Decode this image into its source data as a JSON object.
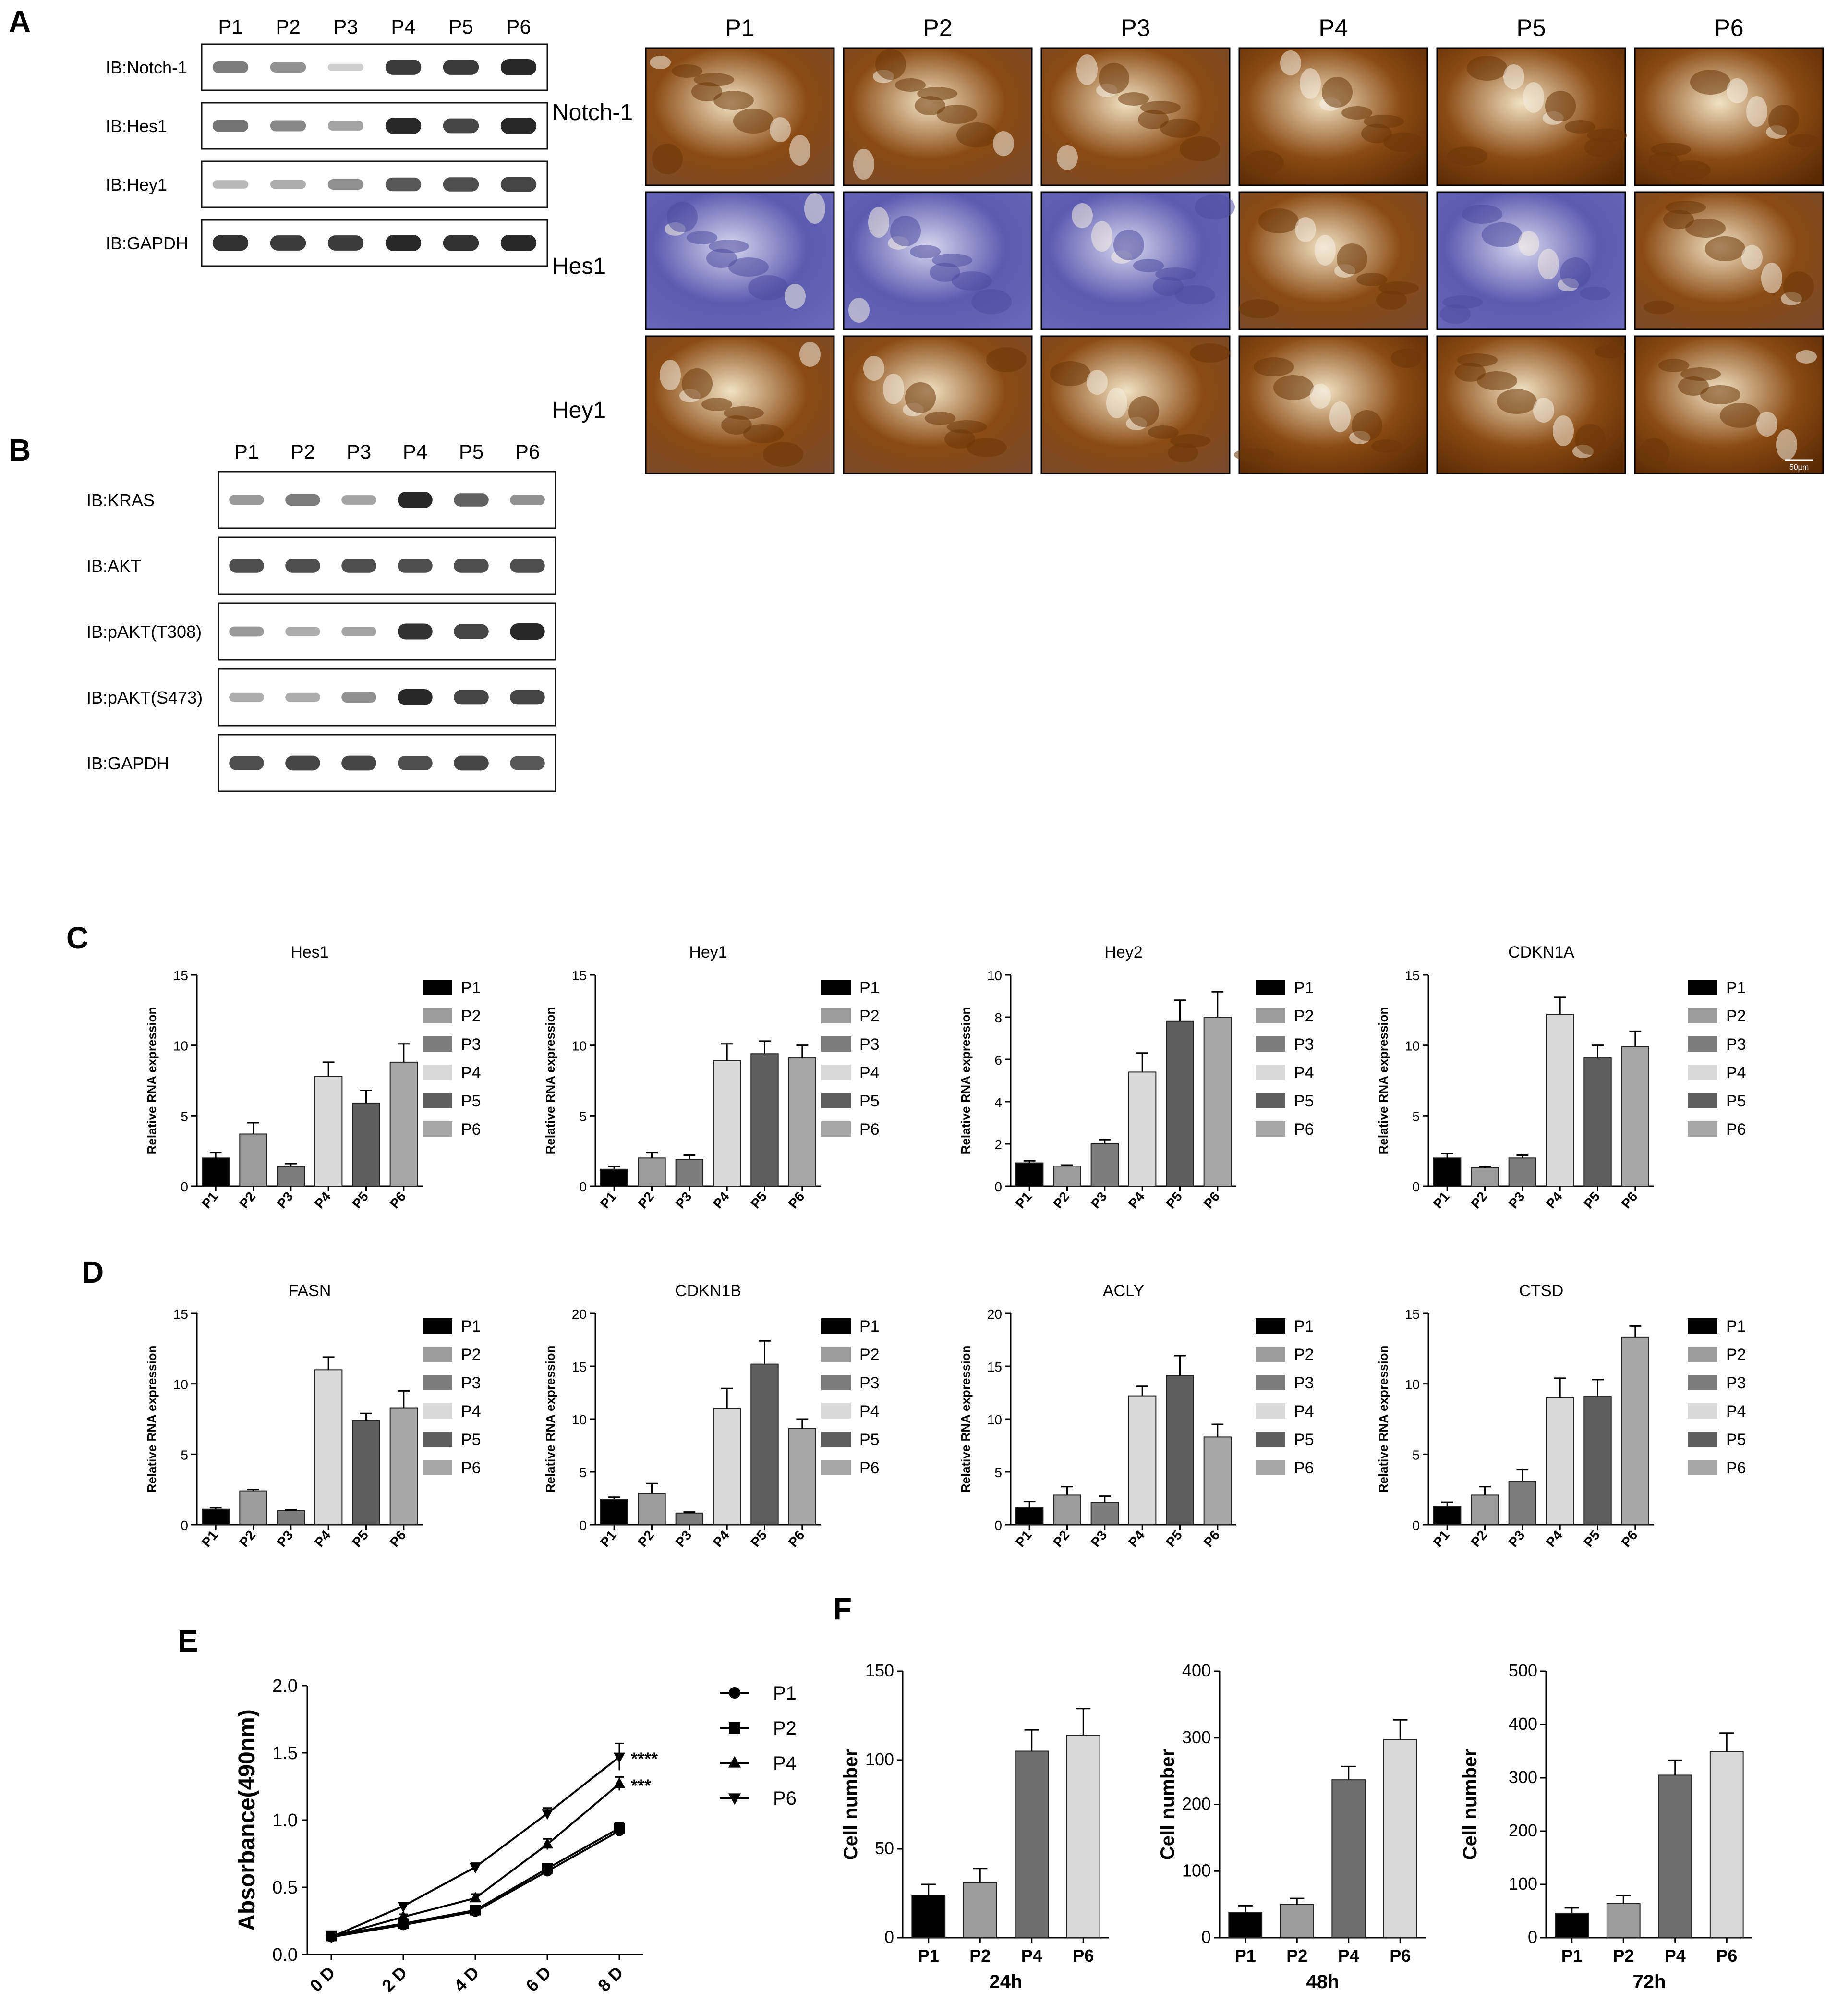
{
  "panels": {
    "A": "A",
    "B": "B",
    "C": "C",
    "D": "D",
    "E": "E",
    "F": "F"
  },
  "lanes": [
    "P1",
    "P2",
    "P3",
    "P4",
    "P5",
    "P6"
  ],
  "blotA": {
    "rows": [
      {
        "label": "IB:Notch-1",
        "intens": [
          0.55,
          0.45,
          0.12,
          0.9,
          0.9,
          1.0
        ]
      },
      {
        "label": "IB:Hes1",
        "intens": [
          0.6,
          0.5,
          0.35,
          1.0,
          0.85,
          1.0
        ]
      },
      {
        "label": "IB:Hey1",
        "intens": [
          0.25,
          0.3,
          0.45,
          0.75,
          0.8,
          0.85
        ]
      },
      {
        "label": "IB:GAPDH",
        "intens": [
          0.95,
          0.9,
          0.9,
          1.0,
          0.95,
          1.0
        ]
      }
    ]
  },
  "blotB": {
    "rows": [
      {
        "label": "IB:KRAS",
        "intens": [
          0.4,
          0.55,
          0.35,
          1.0,
          0.7,
          0.45
        ]
      },
      {
        "label": "IB:AKT",
        "intens": [
          0.8,
          0.8,
          0.8,
          0.8,
          0.8,
          0.8
        ]
      },
      {
        "label": "IB:pAKT(T308)",
        "intens": [
          0.4,
          0.3,
          0.35,
          0.95,
          0.85,
          1.0
        ]
      },
      {
        "label": "IB:pAKT(S473)",
        "intens": [
          0.3,
          0.3,
          0.45,
          1.0,
          0.85,
          0.85
        ]
      },
      {
        "label": "IB:GAPDH",
        "intens": [
          0.8,
          0.85,
          0.85,
          0.8,
          0.85,
          0.75
        ]
      }
    ]
  },
  "ihc": {
    "stains": [
      "Notch-1",
      "Hes1",
      "Hey1"
    ],
    "scalebar": "50µm",
    "tiles": [
      [
        0.6,
        0.55,
        0.55,
        0.85,
        0.8,
        0.85
      ],
      [
        0.05,
        0.02,
        0.03,
        0.3,
        0.15,
        0.35
      ],
      [
        0.55,
        0.6,
        0.4,
        0.85,
        0.75,
        0.9
      ]
    ]
  },
  "colors": {
    "P1": "#000000",
    "P2": "#9b9b9b",
    "P3": "#7c7c7c",
    "P4": "#dadada",
    "P5": "#5e5e5e",
    "P6": "#a6a6a6",
    "stain_brown": "#8a4a12",
    "stain_blue": "#5a5ab0"
  },
  "chart_data": [
    {
      "id": "C-Hes1",
      "type": "bar",
      "title": "Hes1",
      "ylabel": "Relative RNA expression",
      "categories": [
        "P1",
        "P2",
        "P3",
        "P4",
        "P5",
        "P6"
      ],
      "values": [
        2.0,
        3.7,
        1.4,
        7.8,
        5.9,
        8.8
      ],
      "errors": [
        0.4,
        0.8,
        0.2,
        1.0,
        0.9,
        1.3
      ],
      "ylim": [
        0,
        15
      ],
      "yticks": [
        0,
        5,
        10,
        15
      ],
      "legend": [
        "P1",
        "P2",
        "P3",
        "P4",
        "P5",
        "P6"
      ]
    },
    {
      "id": "C-Hey1",
      "type": "bar",
      "title": "Hey1",
      "ylabel": "Relative RNA expression",
      "categories": [
        "P1",
        "P2",
        "P3",
        "P4",
        "P5",
        "P6"
      ],
      "values": [
        1.2,
        2.0,
        1.9,
        8.9,
        9.4,
        9.1
      ],
      "errors": [
        0.2,
        0.4,
        0.3,
        1.2,
        0.9,
        0.9
      ],
      "ylim": [
        0,
        15
      ],
      "yticks": [
        0,
        5,
        10,
        15
      ],
      "legend": [
        "P1",
        "P2",
        "P3",
        "P4",
        "P5",
        "P6"
      ]
    },
    {
      "id": "C-Hey2",
      "type": "bar",
      "title": "Hey2",
      "ylabel": "Relative RNA expression",
      "categories": [
        "P1",
        "P2",
        "P3",
        "P4",
        "P5",
        "P6"
      ],
      "values": [
        1.1,
        0.95,
        2.0,
        5.4,
        7.8,
        8.0
      ],
      "errors": [
        0.1,
        0.05,
        0.2,
        0.9,
        1.0,
        1.2
      ],
      "ylim": [
        0,
        10
      ],
      "yticks": [
        0,
        2,
        4,
        6,
        8,
        10
      ],
      "legend": [
        "P1",
        "P2",
        "P3",
        "P4",
        "P5",
        "P6"
      ]
    },
    {
      "id": "C-CDKN1A",
      "type": "bar",
      "title": "CDKN1A",
      "ylabel": "Relative RNA expression",
      "categories": [
        "P1",
        "P2",
        "P3",
        "P4",
        "P5",
        "P6"
      ],
      "values": [
        2.0,
        1.3,
        2.0,
        12.2,
        9.1,
        9.9
      ],
      "errors": [
        0.3,
        0.1,
        0.2,
        1.2,
        0.9,
        1.1
      ],
      "ylim": [
        0,
        15
      ],
      "yticks": [
        0,
        5,
        10,
        15
      ],
      "legend": [
        "P1",
        "P2",
        "P3",
        "P4",
        "P5",
        "P6"
      ]
    },
    {
      "id": "D-FASN",
      "type": "bar",
      "title": "FASN",
      "ylabel": "Relative RNA expression",
      "categories": [
        "P1",
        "P2",
        "P3",
        "P4",
        "P5",
        "P6"
      ],
      "values": [
        1.1,
        2.4,
        1.0,
        11.0,
        7.4,
        8.3
      ],
      "errors": [
        0.1,
        0.1,
        0.05,
        0.9,
        0.5,
        1.2
      ],
      "ylim": [
        0,
        15
      ],
      "yticks": [
        0,
        5,
        10,
        15
      ],
      "legend": [
        "P1",
        "P2",
        "P3",
        "P4",
        "P5",
        "P6"
      ]
    },
    {
      "id": "D-CDKN1B",
      "type": "bar",
      "title": "CDKN1B",
      "ylabel": "Relative RNA expression",
      "categories": [
        "P1",
        "P2",
        "P3",
        "P4",
        "P5",
        "P6"
      ],
      "values": [
        2.4,
        3.0,
        1.1,
        11.0,
        15.2,
        9.1
      ],
      "errors": [
        0.2,
        0.9,
        0.1,
        1.9,
        2.2,
        0.9
      ],
      "ylim": [
        0,
        20
      ],
      "yticks": [
        0,
        5,
        10,
        15,
        20
      ],
      "legend": [
        "P1",
        "P2",
        "P3",
        "P4",
        "P5",
        "P6"
      ]
    },
    {
      "id": "D-ACLY",
      "type": "bar",
      "title": "ACLY",
      "ylabel": "Relative RNA expression",
      "categories": [
        "P1",
        "P2",
        "P3",
        "P4",
        "P5",
        "P6"
      ],
      "values": [
        1.6,
        2.8,
        2.1,
        12.2,
        14.1,
        8.3
      ],
      "errors": [
        0.6,
        0.8,
        0.6,
        0.9,
        1.9,
        1.2
      ],
      "ylim": [
        0,
        20
      ],
      "yticks": [
        0,
        5,
        10,
        15,
        20
      ],
      "legend": [
        "P1",
        "P2",
        "P3",
        "P4",
        "P5",
        "P6"
      ]
    },
    {
      "id": "D-CTSD",
      "type": "bar",
      "title": "CTSD",
      "ylabel": "Relative RNA expression",
      "categories": [
        "P1",
        "P2",
        "P3",
        "P4",
        "P5",
        "P6"
      ],
      "values": [
        1.3,
        2.1,
        3.1,
        9.0,
        9.1,
        13.3
      ],
      "errors": [
        0.3,
        0.6,
        0.8,
        1.4,
        1.2,
        0.8
      ],
      "ylim": [
        0,
        15
      ],
      "yticks": [
        0,
        5,
        10,
        15
      ],
      "legend": [
        "P1",
        "P2",
        "P3",
        "P4",
        "P5",
        "P6"
      ]
    },
    {
      "id": "E",
      "type": "line",
      "ylabel": "Absorbance(490nm)",
      "x": [
        "0 D",
        "2 D",
        "4 D",
        "6 D",
        "8 D"
      ],
      "ylim": [
        0,
        2.0
      ],
      "yticks": [
        "0.0",
        "0.5",
        "1.0",
        "1.5",
        "2.0"
      ],
      "series": [
        {
          "name": "P1",
          "marker": "circle",
          "values": [
            0.13,
            0.22,
            0.32,
            0.62,
            0.92
          ],
          "errors": [
            0.02,
            0.02,
            0.02,
            0.03,
            0.04
          ]
        },
        {
          "name": "P2",
          "marker": "square",
          "values": [
            0.14,
            0.23,
            0.33,
            0.64,
            0.94
          ],
          "errors": [
            0.02,
            0.02,
            0.02,
            0.03,
            0.04
          ]
        },
        {
          "name": "P4",
          "marker": "triangle-up",
          "values": [
            0.13,
            0.28,
            0.42,
            0.82,
            1.27
          ],
          "errors": [
            0.02,
            0.02,
            0.03,
            0.04,
            0.05
          ]
        },
        {
          "name": "P6",
          "marker": "triangle-down",
          "values": [
            0.13,
            0.36,
            0.65,
            1.05,
            1.47
          ],
          "errors": [
            0.02,
            0.02,
            0.03,
            0.04,
            0.1
          ]
        }
      ],
      "annotations": [
        {
          "series": "P6",
          "text": "****"
        },
        {
          "series": "P4",
          "text": "***"
        }
      ]
    },
    {
      "id": "F-24h",
      "type": "bar",
      "ylabel": "Cell number",
      "xlabel": "24h",
      "categories": [
        "P1",
        "P2",
        "P4",
        "P6"
      ],
      "values": [
        24,
        31,
        105,
        114
      ],
      "errors": [
        6,
        8,
        12,
        15
      ],
      "ylim": [
        0,
        150
      ],
      "yticks": [
        0,
        50,
        100,
        150
      ],
      "colors": [
        "#000000",
        "#9b9b9b",
        "#6e6e6e",
        "#d8d8d8"
      ]
    },
    {
      "id": "F-48h",
      "type": "bar",
      "ylabel": "Cell number",
      "xlabel": "48h",
      "categories": [
        "P1",
        "P2",
        "P4",
        "P6"
      ],
      "values": [
        38,
        50,
        237,
        297
      ],
      "errors": [
        10,
        9,
        20,
        30
      ],
      "ylim": [
        0,
        400
      ],
      "yticks": [
        0,
        100,
        200,
        300,
        400
      ],
      "colors": [
        "#000000",
        "#9b9b9b",
        "#6e6e6e",
        "#d8d8d8"
      ]
    },
    {
      "id": "F-72h",
      "type": "bar",
      "ylabel": "Cell number",
      "xlabel": "72h",
      "categories": [
        "P1",
        "P2",
        "P4",
        "P6"
      ],
      "values": [
        46,
        64,
        305,
        349
      ],
      "errors": [
        10,
        15,
        28,
        35
      ],
      "ylim": [
        0,
        500
      ],
      "yticks": [
        0,
        100,
        200,
        300,
        400,
        500
      ],
      "colors": [
        "#000000",
        "#9b9b9b",
        "#6e6e6e",
        "#d8d8d8"
      ]
    }
  ]
}
